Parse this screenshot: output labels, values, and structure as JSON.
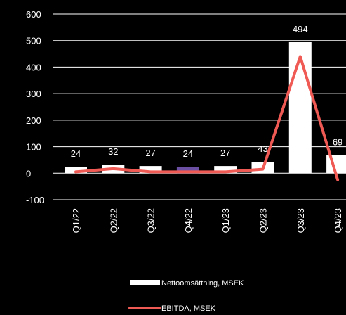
{
  "chart_data": {
    "type": "bar",
    "categories": [
      "Q1/22",
      "Q2/22",
      "Q3/22",
      "Q4/22",
      "Q1/23",
      "Q2/23",
      "Q3/23",
      "Q4/23"
    ],
    "series": [
      {
        "name": "Nettoomsättning, MSEK",
        "type": "bar",
        "values": [
          24,
          32,
          27,
          24,
          27,
          43,
          494,
          69
        ],
        "data_labels": [
          "24",
          "32",
          "27",
          "24",
          "27",
          "43",
          "494",
          "69"
        ],
        "color": "#ffffff",
        "highlight_index": 3,
        "highlight_color": "#6a4fa3"
      },
      {
        "name": "EBITDA, MSEK",
        "type": "line",
        "values": [
          5,
          17,
          5,
          5,
          5,
          15,
          440,
          -25
        ],
        "color": "#f05a55"
      }
    ],
    "yticks": [
      "600",
      "500",
      "400",
      "300",
      "200",
      "100",
      "0",
      "-100"
    ],
    "ylim": [
      -100,
      600
    ],
    "grid": true,
    "legend_position": "bottom",
    "background": "#000000"
  }
}
